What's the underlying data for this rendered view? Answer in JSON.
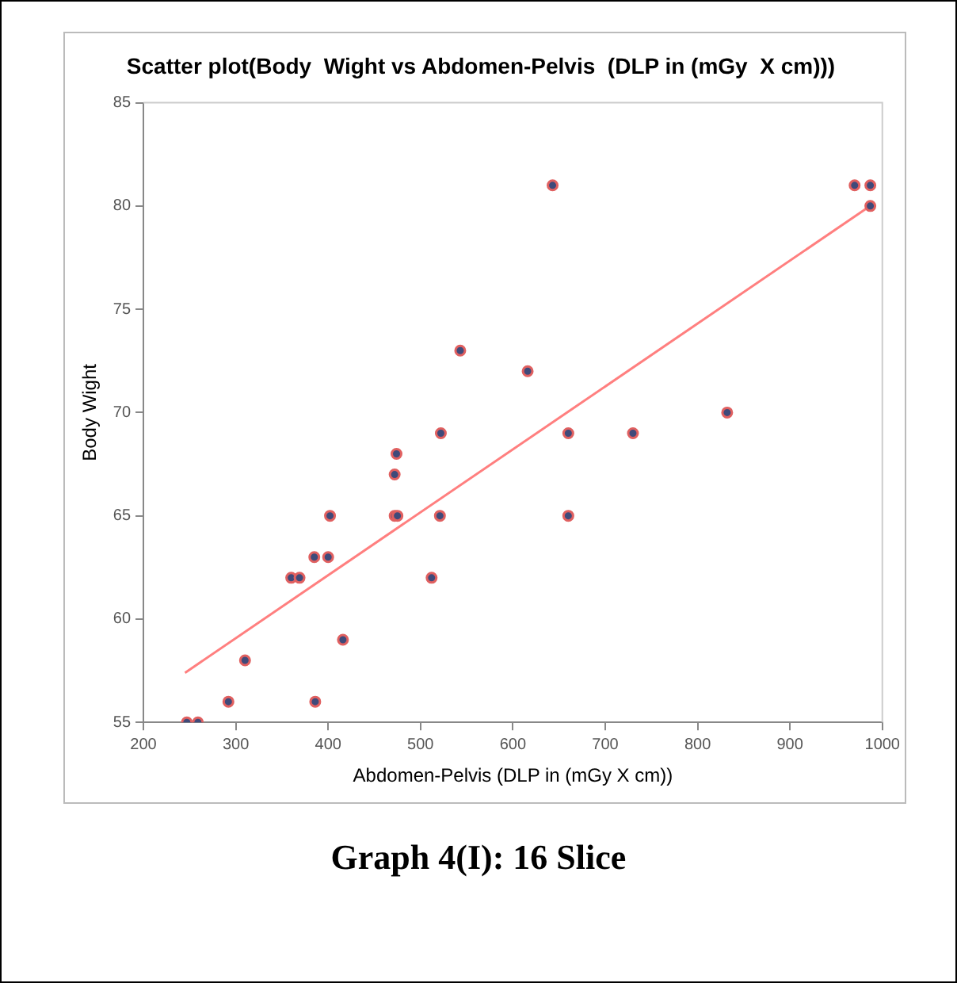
{
  "chart_data": {
    "type": "scatter",
    "title": "Scatter plot(Body  Wight vs Abdomen-Pelvis  (DLP in (mGy  X cm)))",
    "xlabel": "Abdomen-Pelvis (DLP in (mGy X cm))",
    "ylabel": "Body Wight",
    "annotations": [
      "Graph 4(I): 16 Slice"
    ],
    "series": [
      {
        "color": "#3f4a7a",
        "x": [
          247,
          259,
          292,
          310,
          360,
          369,
          385,
          386,
          400,
          402,
          416,
          472,
          474,
          472,
          475,
          512,
          522,
          521,
          543,
          616,
          643,
          660,
          730,
          832,
          660,
          970,
          987,
          987
        ],
        "values": [
          55,
          55,
          56,
          58,
          62,
          62,
          63,
          56,
          63,
          65,
          59,
          67,
          68,
          65,
          65,
          62,
          69,
          65,
          73,
          72,
          81,
          69,
          69,
          70,
          65,
          81,
          81,
          80
        ]
      },
      {
        "type": "line",
        "marker": "none",
        "color": "#ff7f7f",
        "x": [
          245,
          990
        ],
        "values": [
          57.4,
          80.1
        ]
      }
    ],
    "xlim": [
      200,
      1000
    ],
    "xticks": [
      200,
      300,
      400,
      500,
      600,
      700,
      800,
      900,
      1000
    ],
    "ylim": [
      55,
      85
    ],
    "yticks": [
      55,
      60,
      65,
      70,
      75,
      80,
      85
    ],
    "grid": false,
    "legend": false,
    "marker": "circle"
  }
}
